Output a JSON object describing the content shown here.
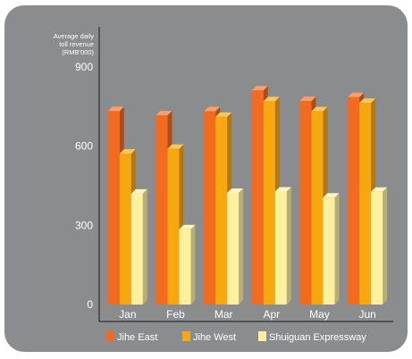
{
  "chart_data": {
    "type": "bar",
    "ylabel_lines": [
      "Average daily",
      "toll revenue",
      "(RMB'000)"
    ],
    "categories": [
      "Jan",
      "Feb",
      "Mar",
      "Apr",
      "May",
      "Jun"
    ],
    "series": [
      {
        "name": "Jihe East",
        "values": [
          733,
          717,
          732,
          811,
          771,
          786
        ],
        "color": "#F26B21"
      },
      {
        "name": "Jihe West",
        "values": [
          572,
          590,
          711,
          770,
          732,
          764
        ],
        "color": "#F7A70F"
      },
      {
        "name": "Shuiguan Expressway",
        "values": [
          420,
          285,
          423,
          428,
          405,
          427
        ],
        "color": "#FFF0A0"
      }
    ],
    "ylim": [
      0,
      1000
    ],
    "yticks": [
      0,
      300,
      600,
      900
    ],
    "grid": false,
    "legend_position": "bottom"
  },
  "colors": {
    "background": "#8A8C8E",
    "text": "#ffffff",
    "axis": "#1a1a1a"
  }
}
